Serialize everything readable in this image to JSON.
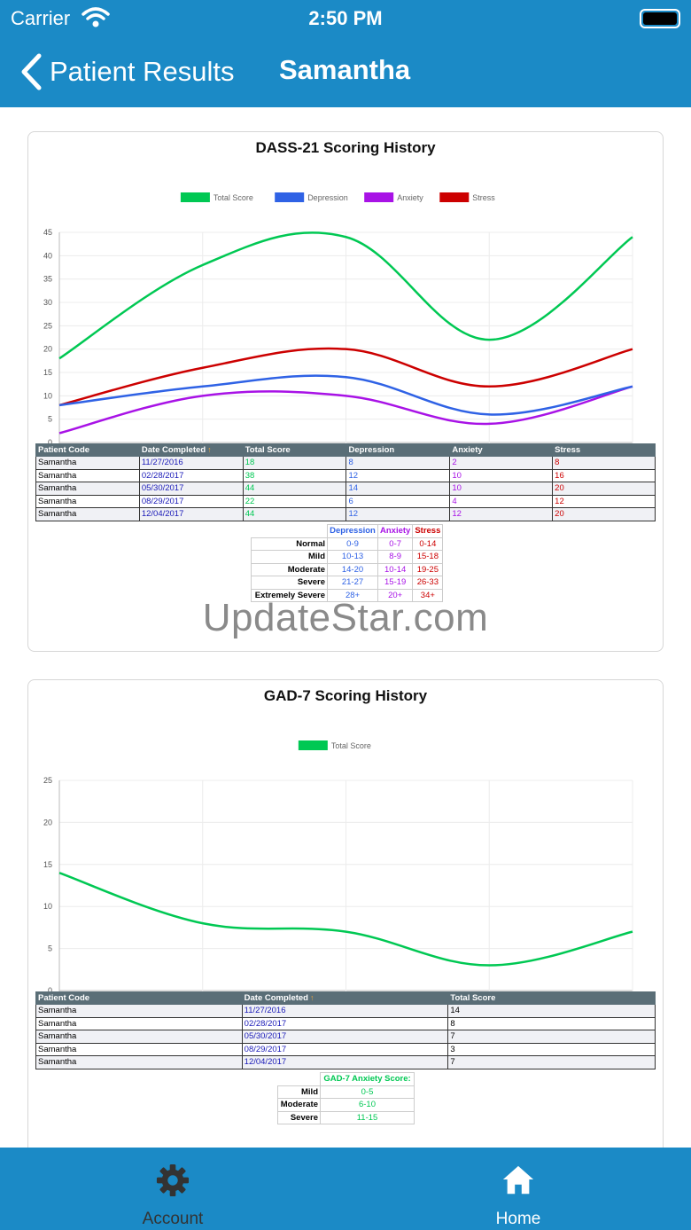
{
  "status_bar": {
    "carrier": "Carrier",
    "time": "2:50 PM"
  },
  "nav": {
    "back_label": "Patient Results",
    "title": "Samantha"
  },
  "colors": {
    "brand": "#1b8ac6",
    "total": "#00c853",
    "depression": "#2f62e5",
    "anxiety": "#a812e6",
    "stress": "#cc0000"
  },
  "dass": {
    "title": "DASS-21 Scoring History",
    "table_headers": [
      "Patient Code",
      "Date Completed",
      "Total Score",
      "Depression",
      "Anxiety",
      "Stress"
    ],
    "rows": [
      [
        "Samantha",
        "11/27/2016",
        "18",
        "8",
        "2",
        "8"
      ],
      [
        "Samantha",
        "02/28/2017",
        "38",
        "12",
        "10",
        "16"
      ],
      [
        "Samantha",
        "05/30/2017",
        "44",
        "14",
        "10",
        "20"
      ],
      [
        "Samantha",
        "08/29/2017",
        "22",
        "6",
        "4",
        "12"
      ],
      [
        "Samantha",
        "12/04/2017",
        "44",
        "12",
        "12",
        "20"
      ]
    ],
    "severity": {
      "headers": [
        "Depression",
        "Anxiety",
        "Stress"
      ],
      "rows": [
        [
          "Normal",
          "0-9",
          "0-7",
          "0-14"
        ],
        [
          "Mild",
          "10-13",
          "8-9",
          "15-18"
        ],
        [
          "Moderate",
          "14-20",
          "10-14",
          "19-25"
        ],
        [
          "Severe",
          "21-27",
          "15-19",
          "26-33"
        ],
        [
          "Extremely Severe",
          "28+",
          "20+",
          "34+"
        ]
      ]
    }
  },
  "watermark": "UpdateStar.com",
  "gad": {
    "title": "GAD-7 Scoring History",
    "table_headers": [
      "Patient Code",
      "Date Completed",
      "Total Score"
    ],
    "rows": [
      [
        "Samantha",
        "11/27/2016",
        "14"
      ],
      [
        "Samantha",
        "02/28/2017",
        "8"
      ],
      [
        "Samantha",
        "05/30/2017",
        "7"
      ],
      [
        "Samantha",
        "08/29/2017",
        "3"
      ],
      [
        "Samantha",
        "12/04/2017",
        "7"
      ]
    ],
    "severity": {
      "header": "GAD-7 Anxiety Score:",
      "rows": [
        [
          "Mild",
          "0-5"
        ],
        [
          "Moderate",
          "6-10"
        ],
        [
          "Severe",
          "11-15"
        ]
      ]
    }
  },
  "chart_data": [
    {
      "type": "line",
      "title": "DASS-21 Scoring History",
      "x": [
        "11/27/2016",
        "02/28/2017",
        "05/30/2017",
        "08/29/2017",
        "12/04/2017"
      ],
      "ylim": [
        0,
        45
      ],
      "yticks": [
        0,
        5,
        10,
        15,
        20,
        25,
        30,
        35,
        40,
        45
      ],
      "grid": true,
      "legend": "top-center",
      "series": [
        {
          "name": "Total Score",
          "color": "#00c853",
          "values": [
            18,
            38,
            44,
            22,
            44
          ]
        },
        {
          "name": "Depression",
          "color": "#2f62e5",
          "values": [
            8,
            12,
            14,
            6,
            12
          ]
        },
        {
          "name": "Anxiety",
          "color": "#a812e6",
          "values": [
            2,
            10,
            10,
            4,
            12
          ]
        },
        {
          "name": "Stress",
          "color": "#cc0000",
          "values": [
            8,
            16,
            20,
            12,
            20
          ]
        }
      ]
    },
    {
      "type": "line",
      "title": "GAD-7 Scoring History",
      "x": [
        "11/27/2016",
        "02/28/2017",
        "05/30/2017",
        "08/29/2017",
        "12/04/2017"
      ],
      "ylim": [
        0,
        25
      ],
      "yticks": [
        0,
        5,
        10,
        15,
        20,
        25
      ],
      "grid": true,
      "legend": "top-center",
      "series": [
        {
          "name": "Total Score",
          "color": "#00c853",
          "values": [
            14,
            8,
            7,
            3,
            7
          ]
        }
      ]
    }
  ],
  "tabs": [
    {
      "label": "Account",
      "icon": "gear-icon",
      "active": false
    },
    {
      "label": "Home",
      "icon": "home-icon",
      "active": true
    }
  ]
}
